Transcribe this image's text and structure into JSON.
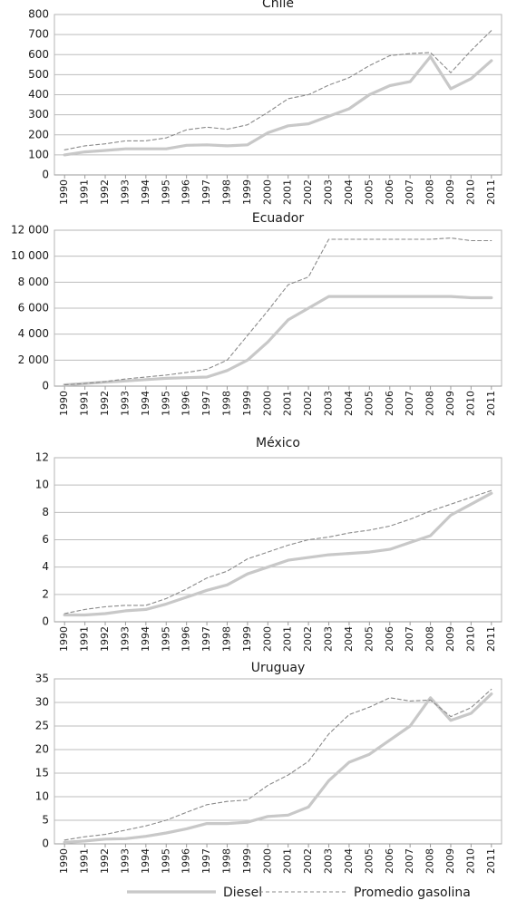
{
  "chart_data": [
    {
      "type": "line",
      "title": "Chile",
      "ylim": [
        0,
        800
      ],
      "yticks": [
        "0",
        "100",
        "200",
        "300",
        "400",
        "500",
        "600",
        "700",
        "800"
      ],
      "x": [
        "1990",
        "1991",
        "1992",
        "1993",
        "1994",
        "1995",
        "1996",
        "1997",
        "1998",
        "1999",
        "2000",
        "2001",
        "2002",
        "2003",
        "2004",
        "2005",
        "2006",
        "2007",
        "2008",
        "2009",
        "2010",
        "2011"
      ],
      "series": [
        {
          "name": "Diesel",
          "values": [
            100,
            115,
            122,
            130,
            130,
            130,
            148,
            150,
            145,
            150,
            210,
            245,
            255,
            293,
            330,
            400,
            445,
            465,
            590,
            430,
            480,
            570
          ]
        },
        {
          "name": "Promedio gasolina",
          "values": [
            125,
            145,
            155,
            170,
            170,
            185,
            225,
            238,
            228,
            250,
            312,
            380,
            400,
            448,
            485,
            545,
            595,
            605,
            610,
            510,
            620,
            720
          ]
        }
      ]
    },
    {
      "type": "line",
      "title": "Ecuador",
      "ylim": [
        0,
        12000
      ],
      "yticks": [
        "0",
        "2 000",
        "4 000",
        "6 000",
        "8 000",
        "10 000",
        "12 000"
      ],
      "x": [
        "1990",
        "1991",
        "1992",
        "1993",
        "1994",
        "1995",
        "1996",
        "1997",
        "1998",
        "1999",
        "2000",
        "2001",
        "2002",
        "2003",
        "2004",
        "2005",
        "2006",
        "2007",
        "2008",
        "2009",
        "2010",
        "2011"
      ],
      "series": [
        {
          "name": "Diesel",
          "values": [
            100,
            200,
            300,
            400,
            500,
            600,
            650,
            700,
            1200,
            2000,
            3400,
            5100,
            6000,
            6900,
            6900,
            6900,
            6900,
            6900,
            6900,
            6900,
            6800,
            6800
          ]
        },
        {
          "name": "Promedio gasolina",
          "values": [
            100,
            200,
            350,
            550,
            700,
            850,
            1050,
            1300,
            2000,
            3900,
            5800,
            7800,
            8400,
            11300,
            11300,
            11300,
            11300,
            11300,
            11300,
            11400,
            11200,
            11200
          ]
        }
      ]
    },
    {
      "type": "line",
      "title": "México",
      "ylim": [
        0,
        12
      ],
      "yticks": [
        "0",
        "2",
        "4",
        "6",
        "8",
        "10",
        "12"
      ],
      "x": [
        "1990",
        "1991",
        "1992",
        "1993",
        "1994",
        "1995",
        "1996",
        "1997",
        "1998",
        "1999",
        "2000",
        "2001",
        "2002",
        "2003",
        "2004",
        "2005",
        "2006",
        "2007",
        "2008",
        "2009",
        "2010",
        "2011"
      ],
      "series": [
        {
          "name": "Diesel",
          "values": [
            0.5,
            0.5,
            0.6,
            0.8,
            0.9,
            1.3,
            1.8,
            2.3,
            2.7,
            3.5,
            4.0,
            4.5,
            4.7,
            4.9,
            5.0,
            5.1,
            5.3,
            5.8,
            6.3,
            7.8,
            8.6,
            9.4
          ]
        },
        {
          "name": "Promedio gasolina",
          "values": [
            0.6,
            0.9,
            1.1,
            1.2,
            1.2,
            1.7,
            2.4,
            3.2,
            3.7,
            4.6,
            5.1,
            5.6,
            6.0,
            6.2,
            6.5,
            6.7,
            7.0,
            7.5,
            8.1,
            8.6,
            9.1,
            9.6
          ]
        }
      ]
    },
    {
      "type": "line",
      "title": "Uruguay",
      "ylim": [
        0,
        35
      ],
      "yticks": [
        "0",
        "5",
        "10",
        "15",
        "20",
        "25",
        "30",
        "35"
      ],
      "x": [
        "1990",
        "1991",
        "1992",
        "1993",
        "1994",
        "1995",
        "1996",
        "1997",
        "1998",
        "1999",
        "2000",
        "2001",
        "2002",
        "2003",
        "2004",
        "2005",
        "2006",
        "2007",
        "2008",
        "2009",
        "2010",
        "2011"
      ],
      "series": [
        {
          "name": "Diesel",
          "values": [
            0.3,
            0.6,
            1.0,
            1.1,
            1.6,
            2.3,
            3.2,
            4.3,
            4.3,
            4.6,
            5.8,
            6.1,
            7.8,
            13.4,
            17.3,
            19.0,
            22.0,
            25.0,
            31.0,
            26.2,
            27.7,
            31.8
          ]
        },
        {
          "name": "Promedio gasolina",
          "values": [
            0.8,
            1.5,
            2.0,
            2.9,
            3.8,
            5.0,
            6.7,
            8.3,
            9.0,
            9.3,
            12.4,
            14.6,
            17.5,
            23.3,
            27.4,
            29.0,
            31.0,
            30.3,
            30.5,
            27.0,
            28.9,
            32.8
          ]
        }
      ]
    }
  ],
  "legend": [
    {
      "name": "Diesel",
      "color": "#c8c8c8",
      "style": "solid-thick"
    },
    {
      "name": "Promedio gasolina",
      "color": "#8a8a8a",
      "style": "dashed"
    }
  ],
  "grid": true,
  "legend_position": "bottom-center"
}
